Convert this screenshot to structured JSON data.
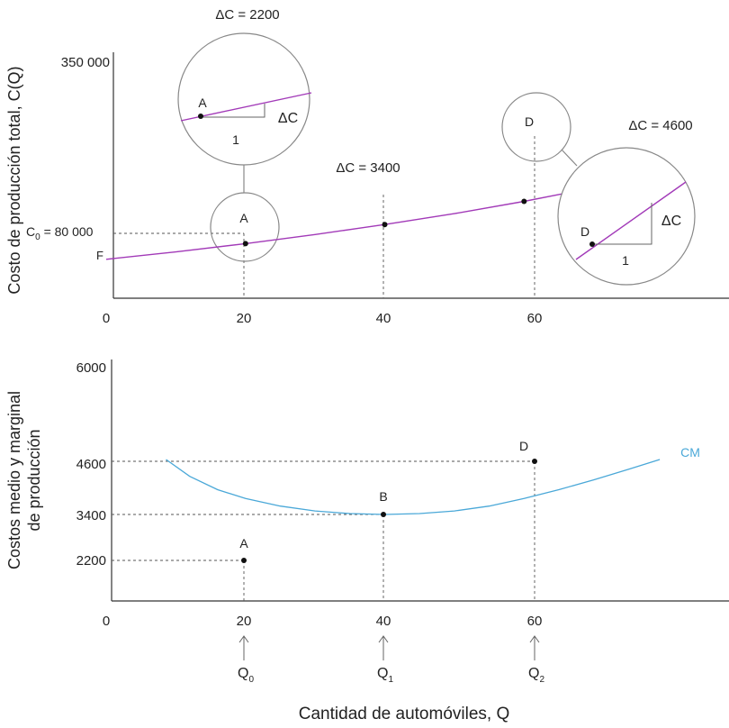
{
  "colors": {
    "cost": "#a23ab8",
    "cm": "#4aa8d8"
  },
  "chart_data": [
    {
      "type": "line",
      "ylabel": "Costo de producción total, C(Q)",
      "xlim": [
        0,
        81
      ],
      "ylim": [
        0,
        350000
      ],
      "y_top_tick": "350 000",
      "x_ticks": [
        "0",
        "20",
        "40",
        "60"
      ],
      "series": [
        {
          "x": [
            0,
            10,
            20,
            30,
            40,
            50,
            60,
            70,
            81
          ],
          "y": [
            57000,
            67900,
            80000,
            93400,
            108000,
            124000,
            142000,
            162000,
            187000
          ]
        }
      ],
      "points": [
        {
          "label": "A",
          "x": 20,
          "y": 80000
        },
        {
          "label": "",
          "x": 40,
          "y": 108000
        },
        {
          "label": "D",
          "x": 60,
          "y": 142000
        }
      ],
      "annotations": {
        "c0_label": "C",
        "c0_sub": "0",
        "c0_value": " = 80 000",
        "f_label": "F",
        "dc_a": "ΔC = 2200",
        "dc_b": "ΔC = 3400",
        "dc_d": "ΔC = 4600",
        "zoom_a_point": "A",
        "zoom_a_dc": "ΔC",
        "zoom_a_one": "1",
        "zoom_d_point": "D",
        "zoom_d_dc": "ΔC",
        "zoom_d_one": "1"
      }
    },
    {
      "type": "line",
      "ylabel_line1": "Costos medio y marginal",
      "ylabel_line2": "de producción",
      "xlabel": "Cantidad de automóviles, Q",
      "xlim": [
        0,
        81
      ],
      "y_ticks": [
        "6000",
        "4600",
        "3400",
        "2200"
      ],
      "x_ticks": [
        "0",
        "20",
        "40",
        "60"
      ],
      "series": [
        {
          "name": "CM",
          "x": [
            8.6,
            12,
            16,
            20,
            25,
            30,
            35,
            40,
            45,
            50,
            55,
            60,
            65,
            70,
            75,
            79.5
          ],
          "y": [
            4640,
            4260,
            3960,
            3760,
            3590,
            3480,
            3420,
            3400,
            3420,
            3480,
            3590,
            3760,
            3960,
            4180,
            4420,
            4640
          ]
        }
      ],
      "points": [
        {
          "label": "A",
          "x": 20,
          "y": 2200
        },
        {
          "label": "B",
          "x": 40,
          "y": 3400
        },
        {
          "label": "D",
          "x": 60,
          "y": 4600
        }
      ],
      "q_labels": [
        {
          "base": "Q",
          "sub": "0"
        },
        {
          "base": "Q",
          "sub": "1"
        },
        {
          "base": "Q",
          "sub": "2"
        }
      ]
    }
  ]
}
